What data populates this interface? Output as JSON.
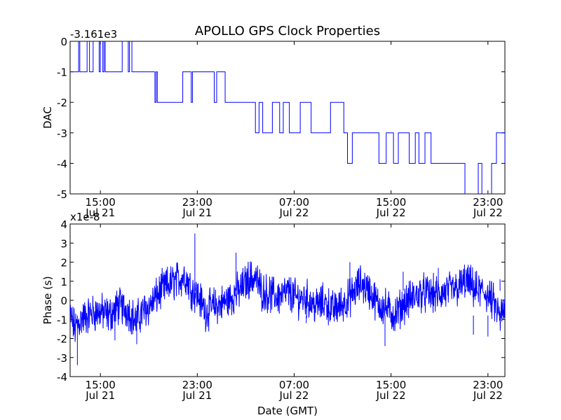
{
  "title": "APOLLO GPS Clock Properties",
  "chart_data": [
    {
      "type": "line",
      "ylabel": "DAC",
      "offset_label": "-3.161e3",
      "ylim": [
        -5,
        0
      ],
      "yticks": [
        0,
        -1,
        -2,
        -3,
        -4,
        -5
      ],
      "ytick_labels": [
        "0",
        "-1",
        "-2",
        "-3",
        "-4",
        "-5"
      ],
      "xlim_hours": [
        12.5,
        48.4
      ],
      "xticks_hours": [
        15,
        23,
        31,
        39,
        47
      ],
      "xtick_labels": [
        [
          "15:00",
          "Jul 21"
        ],
        [
          "23:00",
          "Jul 21"
        ],
        [
          "07:00",
          "Jul 22"
        ],
        [
          "15:00",
          "Jul 22"
        ],
        [
          "23:00",
          "Jul 22"
        ]
      ],
      "series": [
        {
          "name": "DAC",
          "color": "#0000ff",
          "x_hours": [
            12.5,
            12.8,
            13.2,
            13.3,
            13.9,
            14.1,
            14.4,
            14.9,
            15,
            15.2,
            15.3,
            15.4,
            16.7,
            16.8,
            17.2,
            17.3,
            17.4,
            17.6,
            18.8,
            19.5,
            19.6,
            19.7,
            19.8,
            21.8,
            22.5,
            22.6,
            23.5,
            24.4,
            24.6,
            25.3,
            25.6,
            27.8,
            28.1,
            28.4,
            29.2,
            29.8,
            30.1,
            30.6,
            31.5,
            32.1,
            32.4,
            33.8,
            34,
            35.1,
            35.4,
            35.8,
            36.1,
            36.4,
            37.7,
            38,
            38.6,
            39.2,
            39.6,
            40.5,
            41,
            41.3,
            41.8,
            42.3,
            42.6,
            43.5,
            43.8,
            44.3,
            45.1,
            46.2,
            46.5,
            47.3,
            47.7,
            48.4
          ],
          "values": [
            -1,
            -1,
            0,
            -1,
            0,
            -1,
            0,
            -1,
            0,
            -1,
            0,
            -1,
            -1,
            0,
            0,
            -1,
            0,
            -1,
            -1,
            -2,
            -1,
            -2,
            -2,
            -1,
            -2,
            -1,
            -1,
            -2,
            -1,
            -2,
            -2,
            -3,
            -2,
            -3,
            -2,
            -3,
            -2,
            -3,
            -2,
            -2,
            -3,
            -3,
            -2,
            -3,
            -4,
            -3,
            -3,
            -3,
            -3,
            -4,
            -3,
            -4,
            -3,
            -4,
            -3,
            -4,
            -3,
            -4,
            -4,
            -4,
            -4,
            -4,
            -5,
            -4,
            -5,
            -4,
            -3,
            -4
          ]
        }
      ]
    },
    {
      "type": "line",
      "ylabel": "Phase (s)",
      "xlabel": "Date (GMT)",
      "offset_label": "x1e-8",
      "ylim": [
        -4,
        4
      ],
      "yticks": [
        4,
        3,
        2,
        1,
        0,
        -1,
        -2,
        -3,
        -4
      ],
      "ytick_labels": [
        "4",
        "3",
        "2",
        "1",
        "0",
        "-1",
        "-2",
        "-3",
        "-4"
      ],
      "xlim_hours": [
        12.5,
        48.4
      ],
      "xticks_hours": [
        15,
        23,
        31,
        39,
        47
      ],
      "xtick_labels": [
        [
          "15:00",
          "Jul 21"
        ],
        [
          "23:00",
          "Jul 21"
        ],
        [
          "07:00",
          "Jul 22"
        ],
        [
          "15:00",
          "Jul 22"
        ],
        [
          "23:00",
          "Jul 22"
        ]
      ],
      "series": [
        {
          "name": "Phase",
          "color": "#0000ff",
          "x_hours": [
            12.5,
            12.9,
            13.4,
            14.2,
            15,
            15.7,
            16.5,
            17.3,
            17.9,
            18.5,
            19.2,
            20,
            20.6,
            21.2,
            22,
            22.5,
            23.1,
            23.7,
            24.4,
            25,
            25.7,
            26.5,
            27.2,
            27.8,
            28.3,
            29,
            29.7,
            30.5,
            31.2,
            32,
            32.8,
            33.5,
            34.2,
            35,
            35.8,
            36.5,
            37.2,
            37.9,
            38.6,
            39.3,
            40,
            40.7,
            41.5,
            42.3,
            43,
            43.8,
            44.5,
            45.2,
            46,
            46.8,
            47.5,
            48,
            48.4
          ],
          "values": [
            -0.8,
            -1.5,
            -1.0,
            -0.7,
            -0.6,
            -0.8,
            -0.3,
            -0.5,
            -1.1,
            -0.6,
            -0.2,
            0.5,
            0.8,
            1.0,
            1.3,
            0.6,
            0.2,
            -0.6,
            -0.3,
            -0.2,
            0.1,
            0.5,
            1.1,
            1.2,
            0.5,
            0.3,
            0.2,
            0.4,
            0.1,
            0.1,
            -0.3,
            -0.1,
            -0.5,
            -0.2,
            0.3,
            0.9,
            0.5,
            -0.2,
            -0.4,
            -0.8,
            -0.2,
            0.1,
            0.4,
            0.3,
            0.3,
            0.5,
            0.6,
            1.0,
            0.5,
            0.4,
            -0.2,
            -0.9,
            -0.5
          ],
          "spikes": [
            [
              13.1,
              -3.4
            ],
            [
              16.2,
              -2.1
            ],
            [
              18.0,
              -2.3
            ],
            [
              22.8,
              3.5
            ],
            [
              26.2,
              2.5
            ],
            [
              32.0,
              -1.2
            ],
            [
              35.6,
              2.0
            ],
            [
              38.5,
              -2.4
            ],
            [
              40.0,
              1.5
            ],
            [
              42.9,
              1.7
            ],
            [
              45.8,
              -1.8
            ],
            [
              47.0,
              -1.9
            ],
            [
              48.0,
              1.1
            ]
          ]
        }
      ]
    }
  ]
}
